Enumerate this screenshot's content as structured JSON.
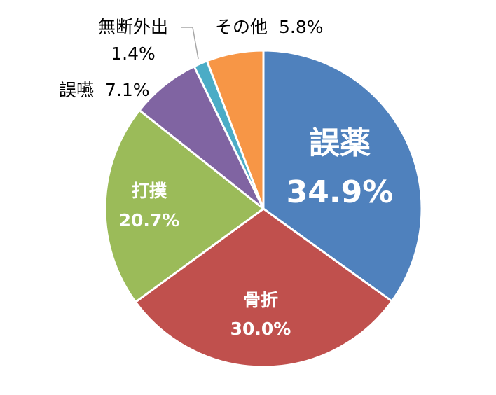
{
  "chart_data": {
    "type": "pie",
    "title": "",
    "start_angle_deg": 0,
    "direction": "clockwise",
    "slices": [
      {
        "label": "誤薬",
        "value": 34.9,
        "value_text": "34.9%",
        "color": "#4f81bd",
        "label_color": "#ffffff",
        "label_pos": "inside"
      },
      {
        "label": "骨折",
        "value": 30.0,
        "value_text": "30.0%",
        "color": "#c0504d",
        "label_color": "#ffffff",
        "label_pos": "inside"
      },
      {
        "label": "打撲",
        "value": 20.7,
        "value_text": "20.7%",
        "color": "#9bbb59",
        "label_color": "#ffffff",
        "label_pos": "inside"
      },
      {
        "label": "誤嚥",
        "value": 7.1,
        "value_text": "7.1%",
        "color": "#8064a2",
        "label_color": "#000000",
        "label_pos": "outside"
      },
      {
        "label": "無断外出",
        "value": 1.4,
        "value_text": "1.4%",
        "color": "#4bacc6",
        "label_color": "#000000",
        "label_pos": "outside"
      },
      {
        "label": "その他",
        "value": 5.8,
        "value_text": "5.8%",
        "color": "#f79646",
        "label_color": "#000000",
        "label_pos": "outside"
      }
    ]
  }
}
